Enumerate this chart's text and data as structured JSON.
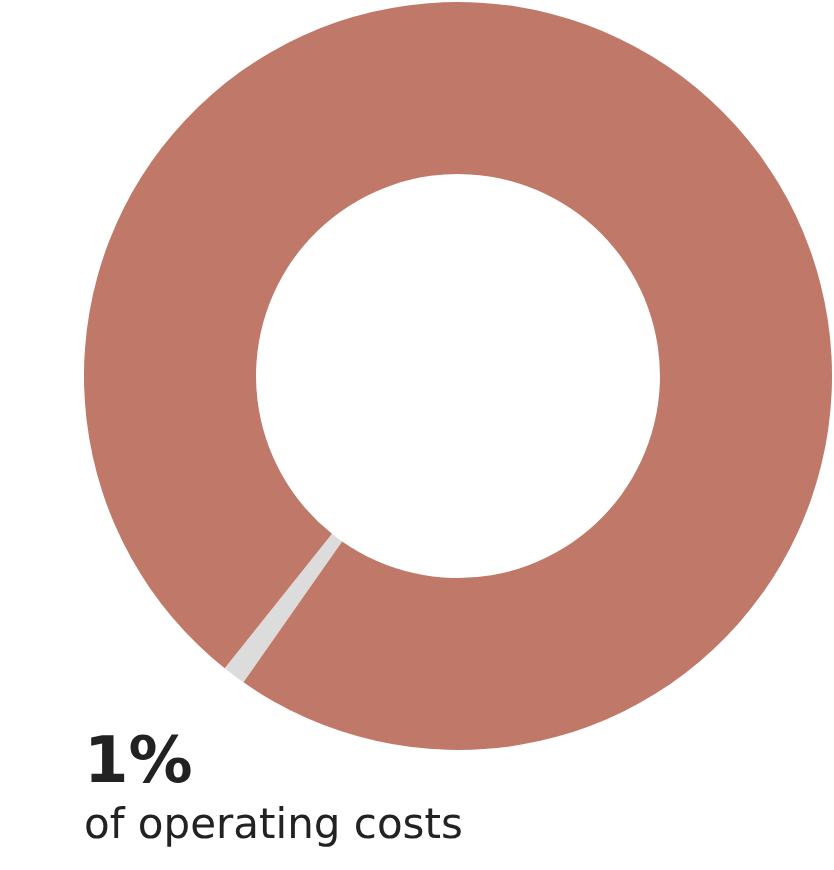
{
  "chart_data": {
    "type": "donut",
    "categories": [
      null,
      null
    ],
    "values": [
      1,
      99
    ],
    "colors": [
      "#dcdcdc",
      "#c07868"
    ],
    "annotations": [
      "1%",
      "of operating costs"
    ]
  }
}
